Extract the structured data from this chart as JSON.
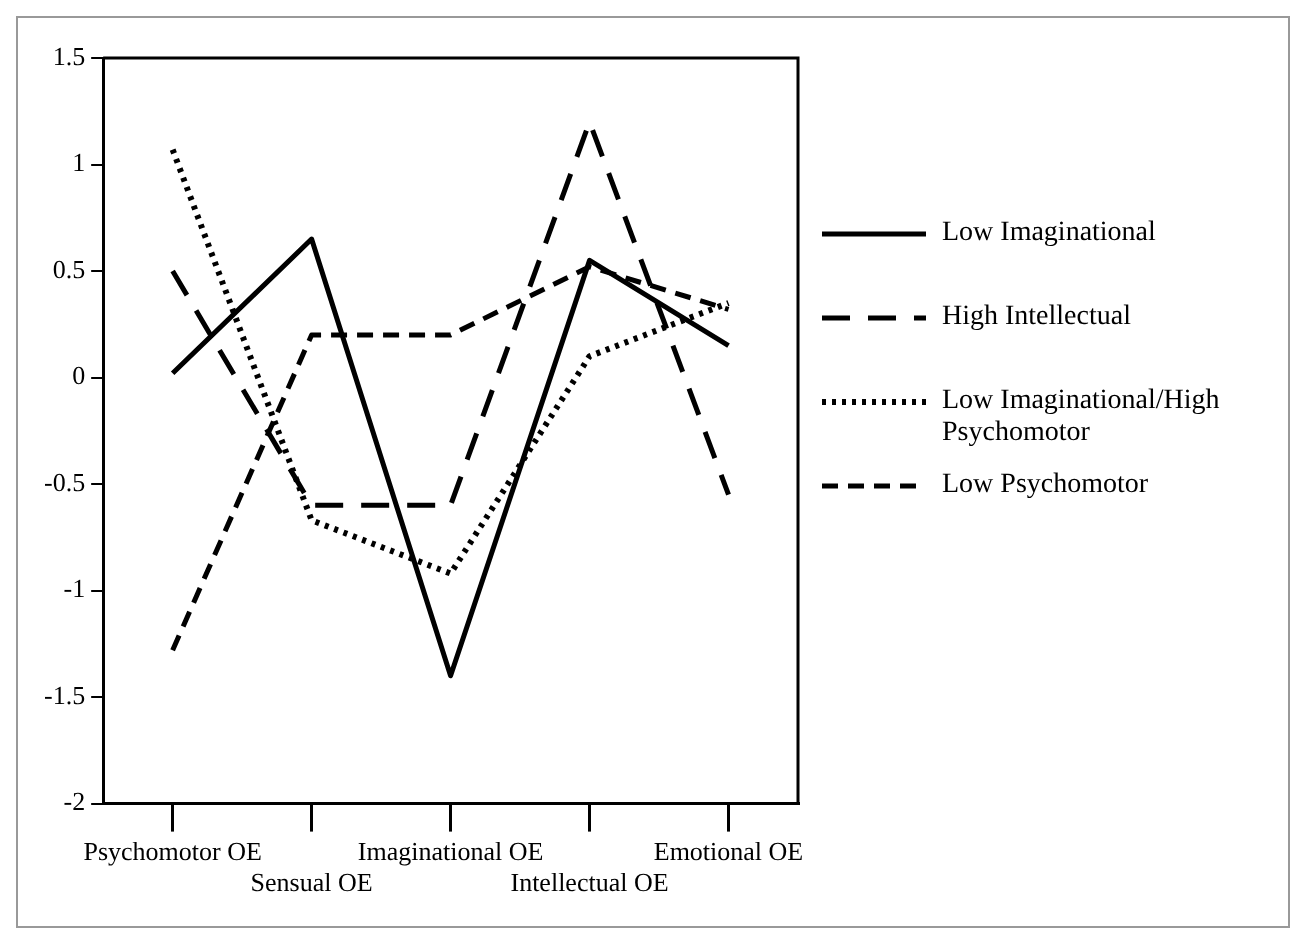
{
  "chart_data": {
    "type": "line",
    "categories": [
      "Psychomotor OE",
      "Sensual OE",
      "Imaginational OE",
      "Intellectual OE",
      "Emotional OE"
    ],
    "series": [
      {
        "name": "Low Imaginational",
        "color": "#000000",
        "line_style": "solid",
        "values": [
          0.02,
          0.65,
          -1.4,
          0.55,
          0.15
        ]
      },
      {
        "name": "High Intellectual",
        "color": "#000000",
        "line_style": "dashed",
        "values": [
          0.5,
          -0.6,
          -0.6,
          1.2,
          -0.55
        ]
      },
      {
        "name": "Low Imaginational/High Psychomotor",
        "color": "#000000",
        "line_style": "dotted",
        "values": [
          1.07,
          -0.67,
          -0.92,
          0.1,
          0.35
        ]
      },
      {
        "name": "Low Psychomotor",
        "color": "#000000",
        "line_style": "shortdash",
        "values": [
          -1.28,
          0.2,
          0.2,
          0.52,
          0.32
        ]
      }
    ],
    "ylim": [
      -2,
      1.5
    ],
    "yticks": [
      -2,
      -1.5,
      -1,
      -0.5,
      0,
      0.5,
      1,
      1.5
    ],
    "grid": false,
    "legend": "right",
    "marker": "none"
  }
}
